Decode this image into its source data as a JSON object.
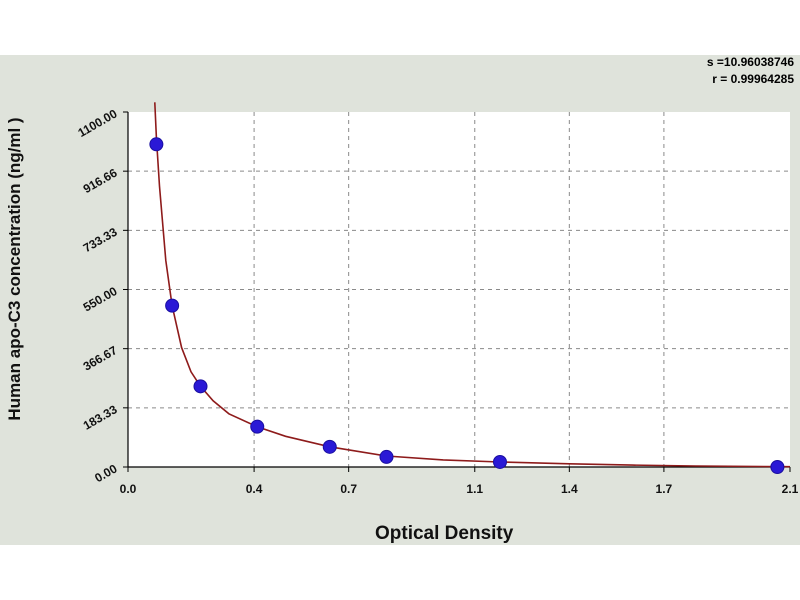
{
  "stats": {
    "s_text": "s =10.96038746",
    "r_text": "r = 0.99964285"
  },
  "chart_data": {
    "type": "scatter",
    "title": "",
    "xlabel": "Optical Density",
    "ylabel": "Human apo-C3 concentration  (ng/ml )",
    "xlim": [
      0.0,
      2.1
    ],
    "ylim": [
      0.0,
      1100.0
    ],
    "x_ticks": [
      "0.0",
      "0.4",
      "0.7",
      "1.1",
      "1.4",
      "1.7",
      "2.1"
    ],
    "y_ticks": [
      "0.00",
      "183.33",
      "366.67",
      "550.00",
      "733.33",
      "916.66",
      "1100.00"
    ],
    "grid": true,
    "points": {
      "x": [
        0.09,
        0.14,
        0.23,
        0.41,
        0.64,
        0.82,
        1.18,
        2.06
      ],
      "y": [
        1000,
        500,
        250,
        125,
        62.5,
        31.25,
        15.6,
        0
      ]
    },
    "fit_curve": {
      "x": [
        0.085,
        0.09,
        0.1,
        0.12,
        0.14,
        0.17,
        0.2,
        0.23,
        0.27,
        0.32,
        0.41,
        0.5,
        0.64,
        0.82,
        1.0,
        1.18,
        1.4,
        1.6,
        1.8,
        2.1
      ],
      "y": [
        1130,
        1020,
        870,
        640,
        500,
        370,
        295,
        250,
        205,
        165,
        125,
        95,
        62.5,
        34,
        22,
        15.6,
        10,
        6,
        3,
        1
      ]
    },
    "colors": {
      "point": "#2a19d6",
      "curve": "#8e1b1b",
      "grid": "#8a8a8a",
      "background": "#dfe3db"
    }
  }
}
